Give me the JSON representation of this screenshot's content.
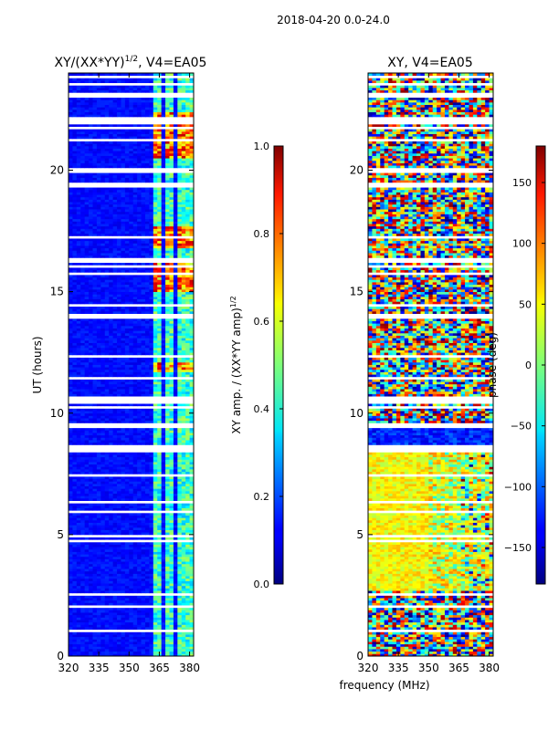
{
  "figure_title": "2018-04-20 0.0-24.0",
  "left_panel": {
    "title_main": "XY/(XX*YY)",
    "title_sup": "1/2",
    "title_rest": ", V4=EA05"
  },
  "right_panel": {
    "title": "XY, V4=EA05"
  },
  "shared": {
    "ylabel": "UT (hours)",
    "xlabel": "frequency (MHz)"
  },
  "colorbar_left": {
    "label_main": "XY amp. / (XX*YY amp)",
    "label_sup": "1/2"
  },
  "colorbar_right": {
    "label": "phase (deg)"
  },
  "chart_data": [
    {
      "type": "heatmap",
      "title": "XY/(XX*YY)^1/2, V4=EA05",
      "xlabel": "",
      "ylabel": "UT (hours)",
      "x_ticks": [
        320,
        335,
        350,
        365,
        380
      ],
      "y_ticks": [
        0,
        5,
        10,
        15,
        20
      ],
      "xlim": [
        320,
        382
      ],
      "ylim": [
        0,
        24
      ],
      "colormap": "jet",
      "colorbar": {
        "label": "XY amp. / (XX*YY amp)^1/2",
        "range": [
          0.0,
          1.0
        ],
        "ticks": [
          0.0,
          0.2,
          0.4,
          0.6,
          0.8,
          1.0
        ],
        "tick_labels": [
          "0.0",
          "0.2",
          "0.4",
          "0.6",
          "0.8",
          "1.0"
        ]
      },
      "bands_mhz": [
        [
          362,
          366
        ],
        [
          368,
          372
        ],
        [
          374,
          377
        ],
        [
          379,
          382
        ]
      ],
      "high_value_hours": [
        [
          11.7,
          12.1
        ],
        [
          15.0,
          16.2
        ],
        [
          16.8,
          17.6
        ],
        [
          20.5,
          22.3
        ]
      ]
    },
    {
      "type": "heatmap",
      "title": "XY, V4=EA05",
      "xlabel": "frequency (MHz)",
      "ylabel": "",
      "x_ticks": [
        320,
        335,
        350,
        365,
        380
      ],
      "y_ticks": [
        0,
        5,
        10,
        15,
        20
      ],
      "xlim": [
        320,
        382
      ],
      "ylim": [
        0,
        24
      ],
      "colormap": "jet",
      "colorbar": {
        "label": "phase (deg)",
        "range": [
          -180,
          180
        ],
        "ticks": [
          150,
          100,
          50,
          0,
          -50,
          -100,
          -150
        ],
        "tick_labels": [
          "150",
          "100",
          "50",
          "0",
          "−50",
          "−100",
          "−150"
        ]
      }
    }
  ]
}
